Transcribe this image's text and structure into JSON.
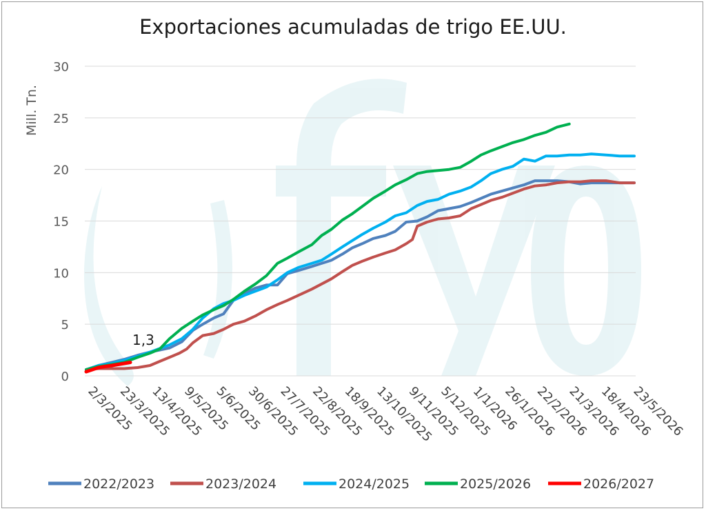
{
  "chart_data": {
    "type": "line",
    "title": "Exportaciones acumuladas de trigo EE.UU.",
    "ylabel": "Mill. Tn.",
    "xlabel": "",
    "ylim": [
      0,
      30
    ],
    "yticks": [
      0,
      5,
      10,
      15,
      20,
      25,
      30
    ],
    "grid": "horizontal",
    "legend_position": "bottom",
    "watermark": "fyo",
    "x_tick_labels": [
      "2/3/2025",
      "23/3/2025",
      "13/4/2025",
      "9/5/2025",
      "5/6/2025",
      "30/6/2025",
      "27/7/2025",
      "22/8/2025",
      "18/9/2025",
      "13/10/2025",
      "9/11/2025",
      "5/12/2025",
      "1/1/2026",
      "26/1/2026",
      "22/2/2026",
      "21/3/2026",
      "18/4/2026",
      "23/5/2026"
    ],
    "annotation": {
      "text": "1,3",
      "series": "2026/2027"
    },
    "series": [
      {
        "name": "2022/2023",
        "color": "#4f81bd",
        "x": [
          "2025-03-02",
          "2025-03-12",
          "2025-03-23",
          "2025-04-02",
          "2025-04-13",
          "2025-04-23",
          "2025-05-09",
          "2025-05-19",
          "2025-05-28",
          "2025-06-05",
          "2025-06-14",
          "2025-06-22",
          "2025-06-30",
          "2025-07-09",
          "2025-07-18",
          "2025-07-27",
          "2025-08-05",
          "2025-08-13",
          "2025-08-22",
          "2025-09-02",
          "2025-09-10",
          "2025-09-18",
          "2025-09-27",
          "2025-10-05",
          "2025-10-13",
          "2025-10-22",
          "2025-11-01",
          "2025-11-09",
          "2025-11-18",
          "2025-11-27",
          "2025-12-05",
          "2025-12-14",
          "2025-12-23",
          "2026-01-01",
          "2026-01-10",
          "2026-01-18",
          "2026-01-26",
          "2026-02-04",
          "2026-02-13",
          "2026-02-22",
          "2026-03-03",
          "2026-03-12",
          "2026-03-21",
          "2026-03-31",
          "2026-04-09",
          "2026-04-18",
          "2026-04-30",
          "2026-05-11",
          "2026-05-23"
        ],
        "values": [
          0.6,
          1.0,
          1.3,
          1.6,
          2.0,
          2.3,
          2.7,
          3.3,
          4.4,
          5.0,
          5.6,
          6.0,
          7.3,
          8.0,
          8.5,
          8.8,
          8.8,
          9.9,
          10.2,
          10.6,
          10.9,
          11.2,
          11.8,
          12.4,
          12.8,
          13.3,
          13.6,
          14.0,
          14.9,
          15.0,
          15.4,
          16.0,
          16.2,
          16.4,
          16.8,
          17.2,
          17.6,
          17.9,
          18.2,
          18.5,
          18.9,
          18.9,
          18.9,
          18.8,
          18.6,
          18.7,
          18.7,
          18.7,
          18.7
        ]
      },
      {
        "name": "2023/2024",
        "color": "#c0504d",
        "x": [
          "2025-03-02",
          "2025-03-12",
          "2025-03-23",
          "2025-04-02",
          "2025-04-13",
          "2025-04-23",
          "2025-05-01",
          "2025-05-09",
          "2025-05-17",
          "2025-05-23",
          "2025-05-28",
          "2025-06-05",
          "2025-06-14",
          "2025-06-22",
          "2025-06-30",
          "2025-07-09",
          "2025-07-18",
          "2025-07-27",
          "2025-08-05",
          "2025-08-13",
          "2025-08-22",
          "2025-09-02",
          "2025-09-10",
          "2025-09-18",
          "2025-09-27",
          "2025-10-05",
          "2025-10-13",
          "2025-10-22",
          "2025-11-01",
          "2025-11-09",
          "2025-11-18",
          "2025-11-23",
          "2025-11-27",
          "2025-12-05",
          "2025-12-14",
          "2025-12-23",
          "2026-01-01",
          "2026-01-10",
          "2026-01-18",
          "2026-01-26",
          "2026-02-04",
          "2026-02-13",
          "2026-02-22",
          "2026-03-03",
          "2026-03-12",
          "2026-03-21",
          "2026-03-31",
          "2026-04-09",
          "2026-04-18",
          "2026-04-30",
          "2026-05-11",
          "2026-05-23"
        ],
        "values": [
          0.6,
          0.7,
          0.7,
          0.7,
          0.8,
          1.0,
          1.4,
          1.8,
          2.2,
          2.6,
          3.2,
          3.9,
          4.1,
          4.5,
          5.0,
          5.3,
          5.8,
          6.4,
          6.9,
          7.3,
          7.8,
          8.4,
          8.9,
          9.4,
          10.1,
          10.7,
          11.1,
          11.5,
          11.9,
          12.2,
          12.8,
          13.2,
          14.5,
          14.9,
          15.2,
          15.3,
          15.5,
          16.2,
          16.6,
          17.0,
          17.3,
          17.7,
          18.1,
          18.4,
          18.5,
          18.7,
          18.8,
          18.8,
          18.9,
          18.9,
          18.7,
          18.7
        ]
      },
      {
        "name": "2024/2025",
        "color": "#00b0f0",
        "x": [
          "2025-03-02",
          "2025-03-12",
          "2025-03-23",
          "2025-04-02",
          "2025-04-13",
          "2025-04-23",
          "2025-05-09",
          "2025-05-19",
          "2025-05-28",
          "2025-06-05",
          "2025-06-14",
          "2025-06-22",
          "2025-06-30",
          "2025-07-09",
          "2025-07-18",
          "2025-07-27",
          "2025-08-05",
          "2025-08-13",
          "2025-08-22",
          "2025-09-02",
          "2025-09-10",
          "2025-09-18",
          "2025-09-27",
          "2025-10-05",
          "2025-10-13",
          "2025-10-22",
          "2025-11-01",
          "2025-11-09",
          "2025-11-18",
          "2025-11-27",
          "2025-12-05",
          "2025-12-14",
          "2025-12-23",
          "2026-01-01",
          "2026-01-10",
          "2026-01-18",
          "2026-01-26",
          "2026-02-04",
          "2026-02-13",
          "2026-02-22",
          "2026-03-03",
          "2026-03-12",
          "2026-03-21",
          "2026-03-31",
          "2026-04-09",
          "2026-04-18",
          "2026-04-30",
          "2026-05-11",
          "2026-05-23"
        ],
        "values": [
          0.6,
          1.0,
          1.2,
          1.5,
          1.9,
          2.3,
          3.0,
          3.6,
          4.5,
          5.6,
          6.5,
          7.0,
          7.3,
          7.8,
          8.2,
          8.6,
          9.3,
          10.0,
          10.5,
          10.9,
          11.2,
          11.8,
          12.5,
          13.1,
          13.7,
          14.3,
          14.9,
          15.5,
          15.8,
          16.5,
          16.9,
          17.1,
          17.6,
          17.9,
          18.3,
          18.9,
          19.6,
          20.0,
          20.3,
          21.0,
          20.8,
          21.3,
          21.3,
          21.4,
          21.4,
          21.5,
          21.4,
          21.3,
          21.3
        ]
      },
      {
        "name": "2025/2026",
        "color": "#00b050",
        "x": [
          "2025-03-02",
          "2025-03-12",
          "2025-03-23",
          "2025-04-02",
          "2025-04-13",
          "2025-04-23",
          "2025-05-01",
          "2025-05-09",
          "2025-05-19",
          "2025-05-28",
          "2025-06-05",
          "2025-06-14",
          "2025-06-22",
          "2025-06-30",
          "2025-07-09",
          "2025-07-18",
          "2025-07-27",
          "2025-08-05",
          "2025-08-13",
          "2025-08-22",
          "2025-09-02",
          "2025-09-10",
          "2025-09-18",
          "2025-09-27",
          "2025-10-05",
          "2025-10-13",
          "2025-10-22",
          "2025-11-01",
          "2025-11-09",
          "2025-11-18",
          "2025-11-27",
          "2025-12-05",
          "2025-12-14",
          "2025-12-23",
          "2026-01-01",
          "2026-01-10",
          "2026-01-18",
          "2026-01-26",
          "2026-02-04",
          "2026-02-13",
          "2026-02-22",
          "2026-03-03",
          "2026-03-12",
          "2026-03-21",
          "2026-03-31"
        ],
        "values": [
          0.6,
          0.9,
          1.1,
          1.3,
          1.8,
          2.2,
          2.6,
          3.6,
          4.6,
          5.3,
          5.9,
          6.4,
          6.8,
          7.4,
          8.2,
          8.9,
          9.7,
          10.9,
          11.4,
          12.0,
          12.7,
          13.6,
          14.2,
          15.1,
          15.7,
          16.4,
          17.2,
          17.9,
          18.5,
          19.0,
          19.6,
          19.8,
          19.9,
          20.0,
          20.2,
          20.8,
          21.4,
          21.8,
          22.2,
          22.6,
          22.9,
          23.3,
          23.6,
          24.1,
          24.4
        ]
      },
      {
        "name": "2026/2027",
        "color": "#ff0000",
        "x": [
          "2025-03-02",
          "2025-03-07",
          "2025-03-12",
          "2025-03-17",
          "2025-03-23",
          "2025-03-28",
          "2025-04-02",
          "2025-04-07"
        ],
        "values": [
          0.4,
          0.6,
          0.8,
          0.9,
          1.0,
          1.1,
          1.2,
          1.3
        ]
      }
    ]
  }
}
